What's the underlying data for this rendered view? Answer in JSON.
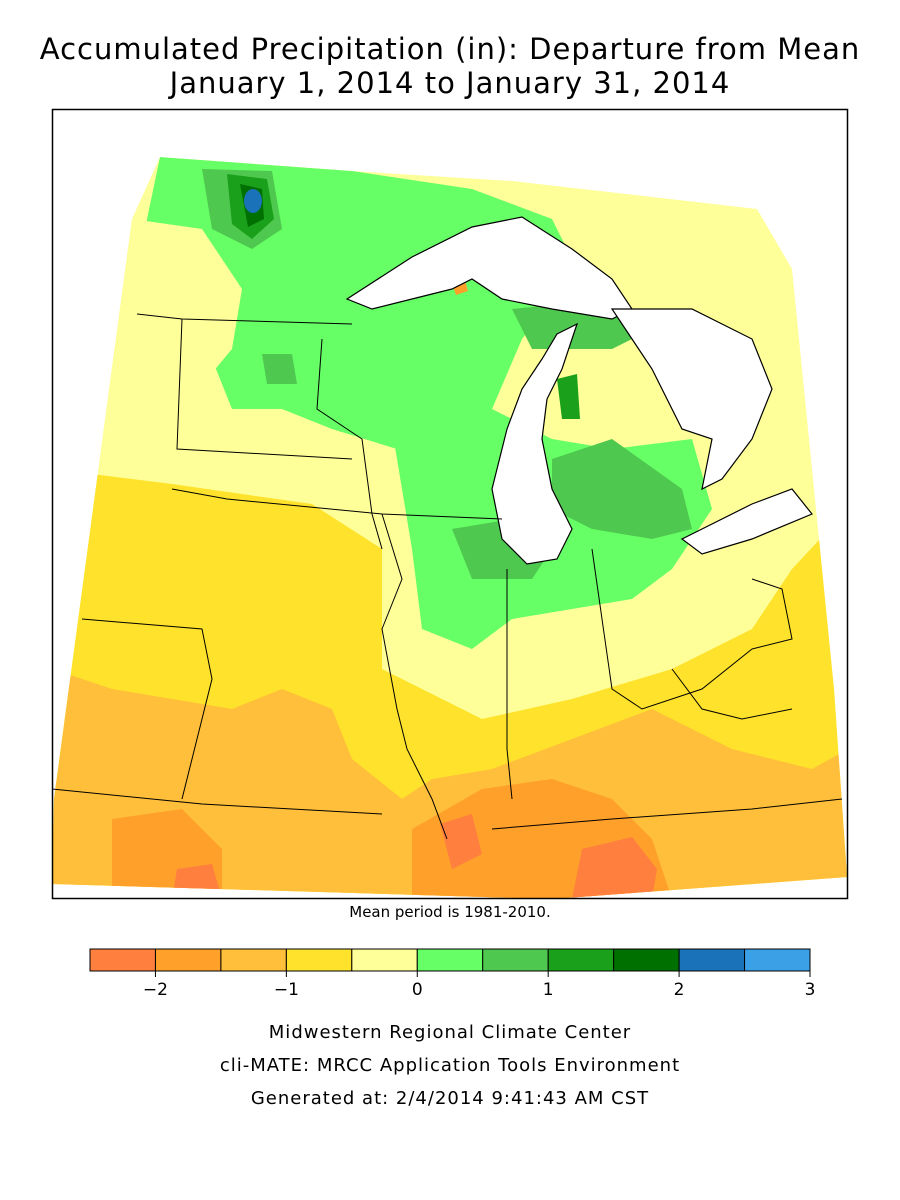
{
  "title": {
    "line1": "Accumulated Precipitation (in): Departure from Mean",
    "line2": "January 1, 2014 to January 31, 2014"
  },
  "map": {
    "mean_period_note": "Mean period is 1981-2010.",
    "water_color": "#ffffff",
    "boundary_color": "#000000"
  },
  "legend": {
    "colors": [
      "#ff7f3f",
      "#ffa02a",
      "#ffbf3a",
      "#ffe22b",
      "#ffff99",
      "#66ff66",
      "#4fc84f",
      "#1aa01a",
      "#007000",
      "#1a73b8",
      "#3ca0e6"
    ],
    "ticks": [
      "-2",
      "-1",
      "0",
      "1",
      "2",
      "3"
    ]
  },
  "footer": {
    "line1": "Midwestern Regional Climate Center",
    "line2": "cli-MATE: MRCC Application Tools Environment",
    "line3": "Generated at: 2/4/2014 9:41:43 AM CST"
  }
}
